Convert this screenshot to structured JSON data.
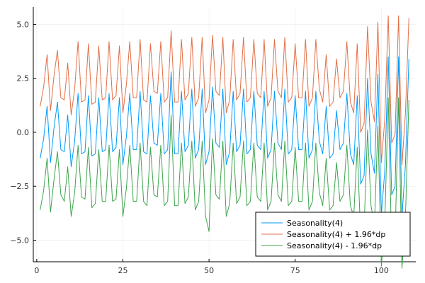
{
  "chart_data": {
    "type": "line",
    "grid": true,
    "legend_position": "bottom-right",
    "xlim": [
      -1,
      110
    ],
    "ylim": [
      -6,
      5.8
    ],
    "x_ticks": [
      0,
      25,
      50,
      75,
      100
    ],
    "x_tick_labels": [
      "0",
      "25",
      "50",
      "75",
      "100"
    ],
    "y_ticks": [
      -5,
      -2.5,
      0,
      2.5,
      5
    ],
    "y_tick_labels": [
      "−5.0",
      "−2.5",
      "0.0",
      "2.5",
      "5.0"
    ],
    "x": [
      1,
      2,
      3,
      4,
      5,
      6,
      7,
      8,
      9,
      10,
      11,
      12,
      13,
      14,
      15,
      16,
      17,
      18,
      19,
      20,
      21,
      22,
      23,
      24,
      25,
      26,
      27,
      28,
      29,
      30,
      31,
      32,
      33,
      34,
      35,
      36,
      37,
      38,
      39,
      40,
      41,
      42,
      43,
      44,
      45,
      46,
      47,
      48,
      49,
      50,
      51,
      52,
      53,
      54,
      55,
      56,
      57,
      58,
      59,
      60,
      61,
      62,
      63,
      64,
      65,
      66,
      67,
      68,
      69,
      70,
      71,
      72,
      73,
      74,
      75,
      76,
      77,
      78,
      79,
      80,
      81,
      82,
      83,
      84,
      85,
      86,
      87,
      88,
      89,
      90,
      91,
      92,
      93,
      94,
      95,
      96,
      97,
      98,
      99,
      100,
      101,
      102,
      103,
      104,
      105,
      106,
      107,
      108
    ],
    "series": [
      {
        "name": "Seasonality(4)",
        "color": "#009AF9",
        "values": [
          -1.2,
          -0.3,
          1.2,
          -1.4,
          0.2,
          1.4,
          -0.8,
          -0.9,
          0.8,
          -1.6,
          -0.4,
          1.8,
          -1.0,
          -0.9,
          1.7,
          -1.1,
          -1.0,
          1.6,
          -0.9,
          -0.8,
          1.8,
          -0.9,
          -0.7,
          1.6,
          -1.5,
          -0.2,
          1.8,
          -0.8,
          -0.8,
          1.9,
          -0.9,
          -1.0,
          1.7,
          -0.5,
          -0.6,
          1.8,
          -1.0,
          -0.8,
          2.8,
          -1.0,
          -1.0,
          1.9,
          -0.9,
          -0.6,
          2.0,
          -1.2,
          -0.8,
          2.0,
          -1.5,
          -0.9,
          2.1,
          -0.5,
          -0.7,
          2.0,
          -1.5,
          -0.9,
          1.9,
          -0.9,
          -0.6,
          2.0,
          -1.0,
          -0.8,
          1.9,
          -0.6,
          -0.8,
          1.9,
          -1.2,
          -0.8,
          1.9,
          -0.5,
          -0.8,
          2.0,
          -1.0,
          -0.8,
          1.7,
          -0.8,
          -0.8,
          1.9,
          -1.2,
          -0.8,
          1.9,
          -0.4,
          -1.0,
          1.2,
          -1.2,
          -1.0,
          1.0,
          -0.8,
          -0.5,
          1.8,
          -1.0,
          -1.5,
          1.7,
          -2.4,
          -2.0,
          2.5,
          -1.0,
          -1.9,
          2.7,
          -3.8,
          -1.8,
          3.5,
          -2.9,
          -2.5,
          3.5,
          -3.9,
          -1.5,
          3.4
        ]
      },
      {
        "name": "Seasonality(4) + 1.96*dp",
        "color": "#E26F46",
        "values": [
          1.2,
          2.1,
          3.6,
          1.0,
          2.6,
          3.8,
          1.6,
          1.5,
          3.2,
          0.8,
          2.0,
          4.2,
          1.4,
          1.5,
          4.1,
          1.3,
          1.4,
          4.0,
          1.5,
          1.6,
          4.2,
          1.5,
          1.7,
          4.0,
          0.9,
          2.2,
          4.2,
          1.6,
          1.6,
          4.3,
          1.5,
          1.4,
          4.1,
          1.9,
          1.8,
          4.2,
          1.4,
          1.6,
          4.7,
          1.4,
          1.4,
          4.3,
          1.5,
          1.8,
          4.4,
          1.2,
          1.6,
          4.4,
          0.9,
          1.5,
          4.5,
          1.9,
          1.7,
          4.4,
          0.9,
          1.5,
          4.3,
          1.5,
          1.8,
          4.4,
          1.4,
          1.6,
          4.3,
          1.8,
          1.6,
          4.3,
          1.2,
          1.6,
          4.3,
          1.9,
          1.6,
          4.4,
          1.4,
          1.6,
          4.1,
          1.6,
          1.6,
          4.3,
          1.2,
          1.6,
          4.3,
          2.0,
          1.4,
          3.6,
          1.2,
          1.4,
          3.4,
          1.6,
          1.9,
          4.2,
          1.4,
          0.9,
          4.1,
          0.0,
          0.4,
          4.9,
          1.4,
          0.5,
          5.1,
          -1.4,
          0.6,
          5.4,
          -0.5,
          -0.1,
          5.4,
          -1.5,
          0.9,
          5.3
        ]
      },
      {
        "name": "Seasonality(4) - 1.96*dp",
        "color": "#3DA44D",
        "values": [
          -3.6,
          -2.7,
          -1.2,
          -3.7,
          -2.2,
          -0.9,
          -2.9,
          -3.2,
          -1.6,
          -3.9,
          -2.8,
          -0.6,
          -3.0,
          -3.1,
          -0.7,
          -3.5,
          -3.3,
          -0.8,
          -3.2,
          -3.2,
          -0.6,
          -3.2,
          -3.1,
          -0.8,
          -3.9,
          -2.6,
          -0.6,
          -3.2,
          -3.2,
          -0.5,
          -3.2,
          -3.4,
          -0.7,
          -2.9,
          -3.0,
          -0.6,
          -3.4,
          -3.2,
          0.8,
          -3.4,
          -3.4,
          -0.5,
          -3.3,
          -3.0,
          -0.4,
          -3.6,
          -3.2,
          -0.4,
          -3.9,
          -4.6,
          -0.3,
          -2.9,
          -3.1,
          -0.4,
          -3.9,
          -3.3,
          -0.5,
          -3.3,
          -3.0,
          -0.4,
          -3.4,
          -3.2,
          -0.5,
          -3.0,
          -3.2,
          -0.5,
          -3.6,
          -3.2,
          -0.5,
          -2.9,
          -3.2,
          -0.4,
          -3.4,
          -3.2,
          -0.7,
          -3.2,
          -3.2,
          -0.5,
          -3.6,
          -3.2,
          -0.5,
          -2.8,
          -3.4,
          -1.2,
          -3.6,
          -3.4,
          -1.4,
          -3.2,
          -2.9,
          -0.6,
          -3.4,
          -3.9,
          -0.7,
          -4.8,
          -4.4,
          0.1,
          -3.4,
          -4.3,
          0.3,
          -6.2,
          -4.2,
          1.6,
          -5.3,
          -4.9,
          1.6,
          -6.3,
          -3.9,
          1.5
        ]
      }
    ]
  }
}
